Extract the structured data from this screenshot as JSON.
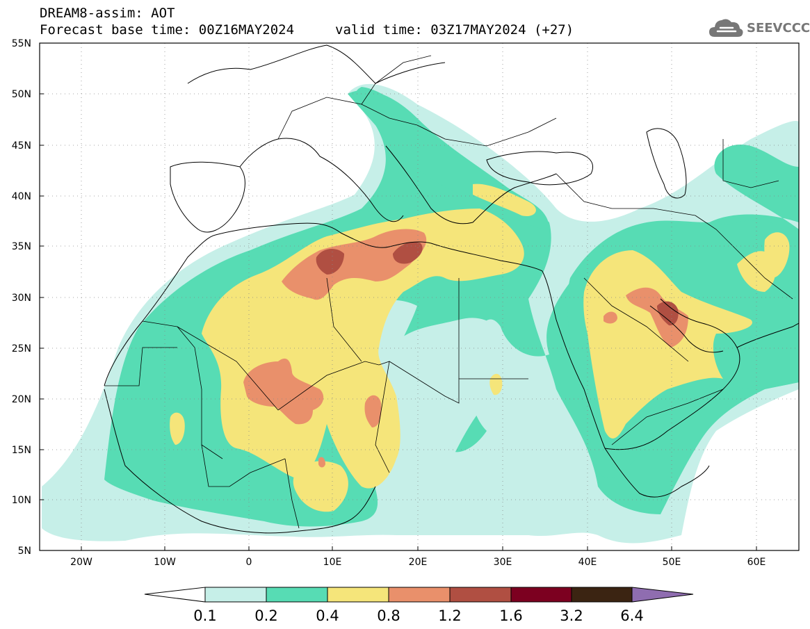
{
  "header": {
    "title": "DREAM8-assim: AOT",
    "base_time": "Forecast base time: 00Z16MAY2024",
    "valid_time": "valid time: 03Z17MAY2024 (+27)"
  },
  "logo": {
    "text": "SEEVCCC",
    "icon": "cloud-icon",
    "color": "#777777"
  },
  "axes": {
    "lat_labels": [
      "55N",
      "50N",
      "45N",
      "40N",
      "35N",
      "30N",
      "25N",
      "20N",
      "15N",
      "10N",
      "5N"
    ],
    "lon_labels": [
      "20W",
      "10W",
      "0",
      "10E",
      "20E",
      "30E",
      "40E",
      "50E",
      "60E"
    ],
    "lat_range": [
      5,
      55
    ],
    "lon_range": [
      -25,
      65
    ]
  },
  "colorbar": {
    "labels": [
      "0.1",
      "0.2",
      "0.4",
      "0.8",
      "1.2",
      "1.6",
      "3.2",
      "6.4"
    ],
    "colors": [
      "#ffffff",
      "#c6efe8",
      "#57dcb4",
      "#f5e57a",
      "#e9906b",
      "#b04f42",
      "#7c0020",
      "#3b2412",
      "#8f6db0"
    ]
  }
}
